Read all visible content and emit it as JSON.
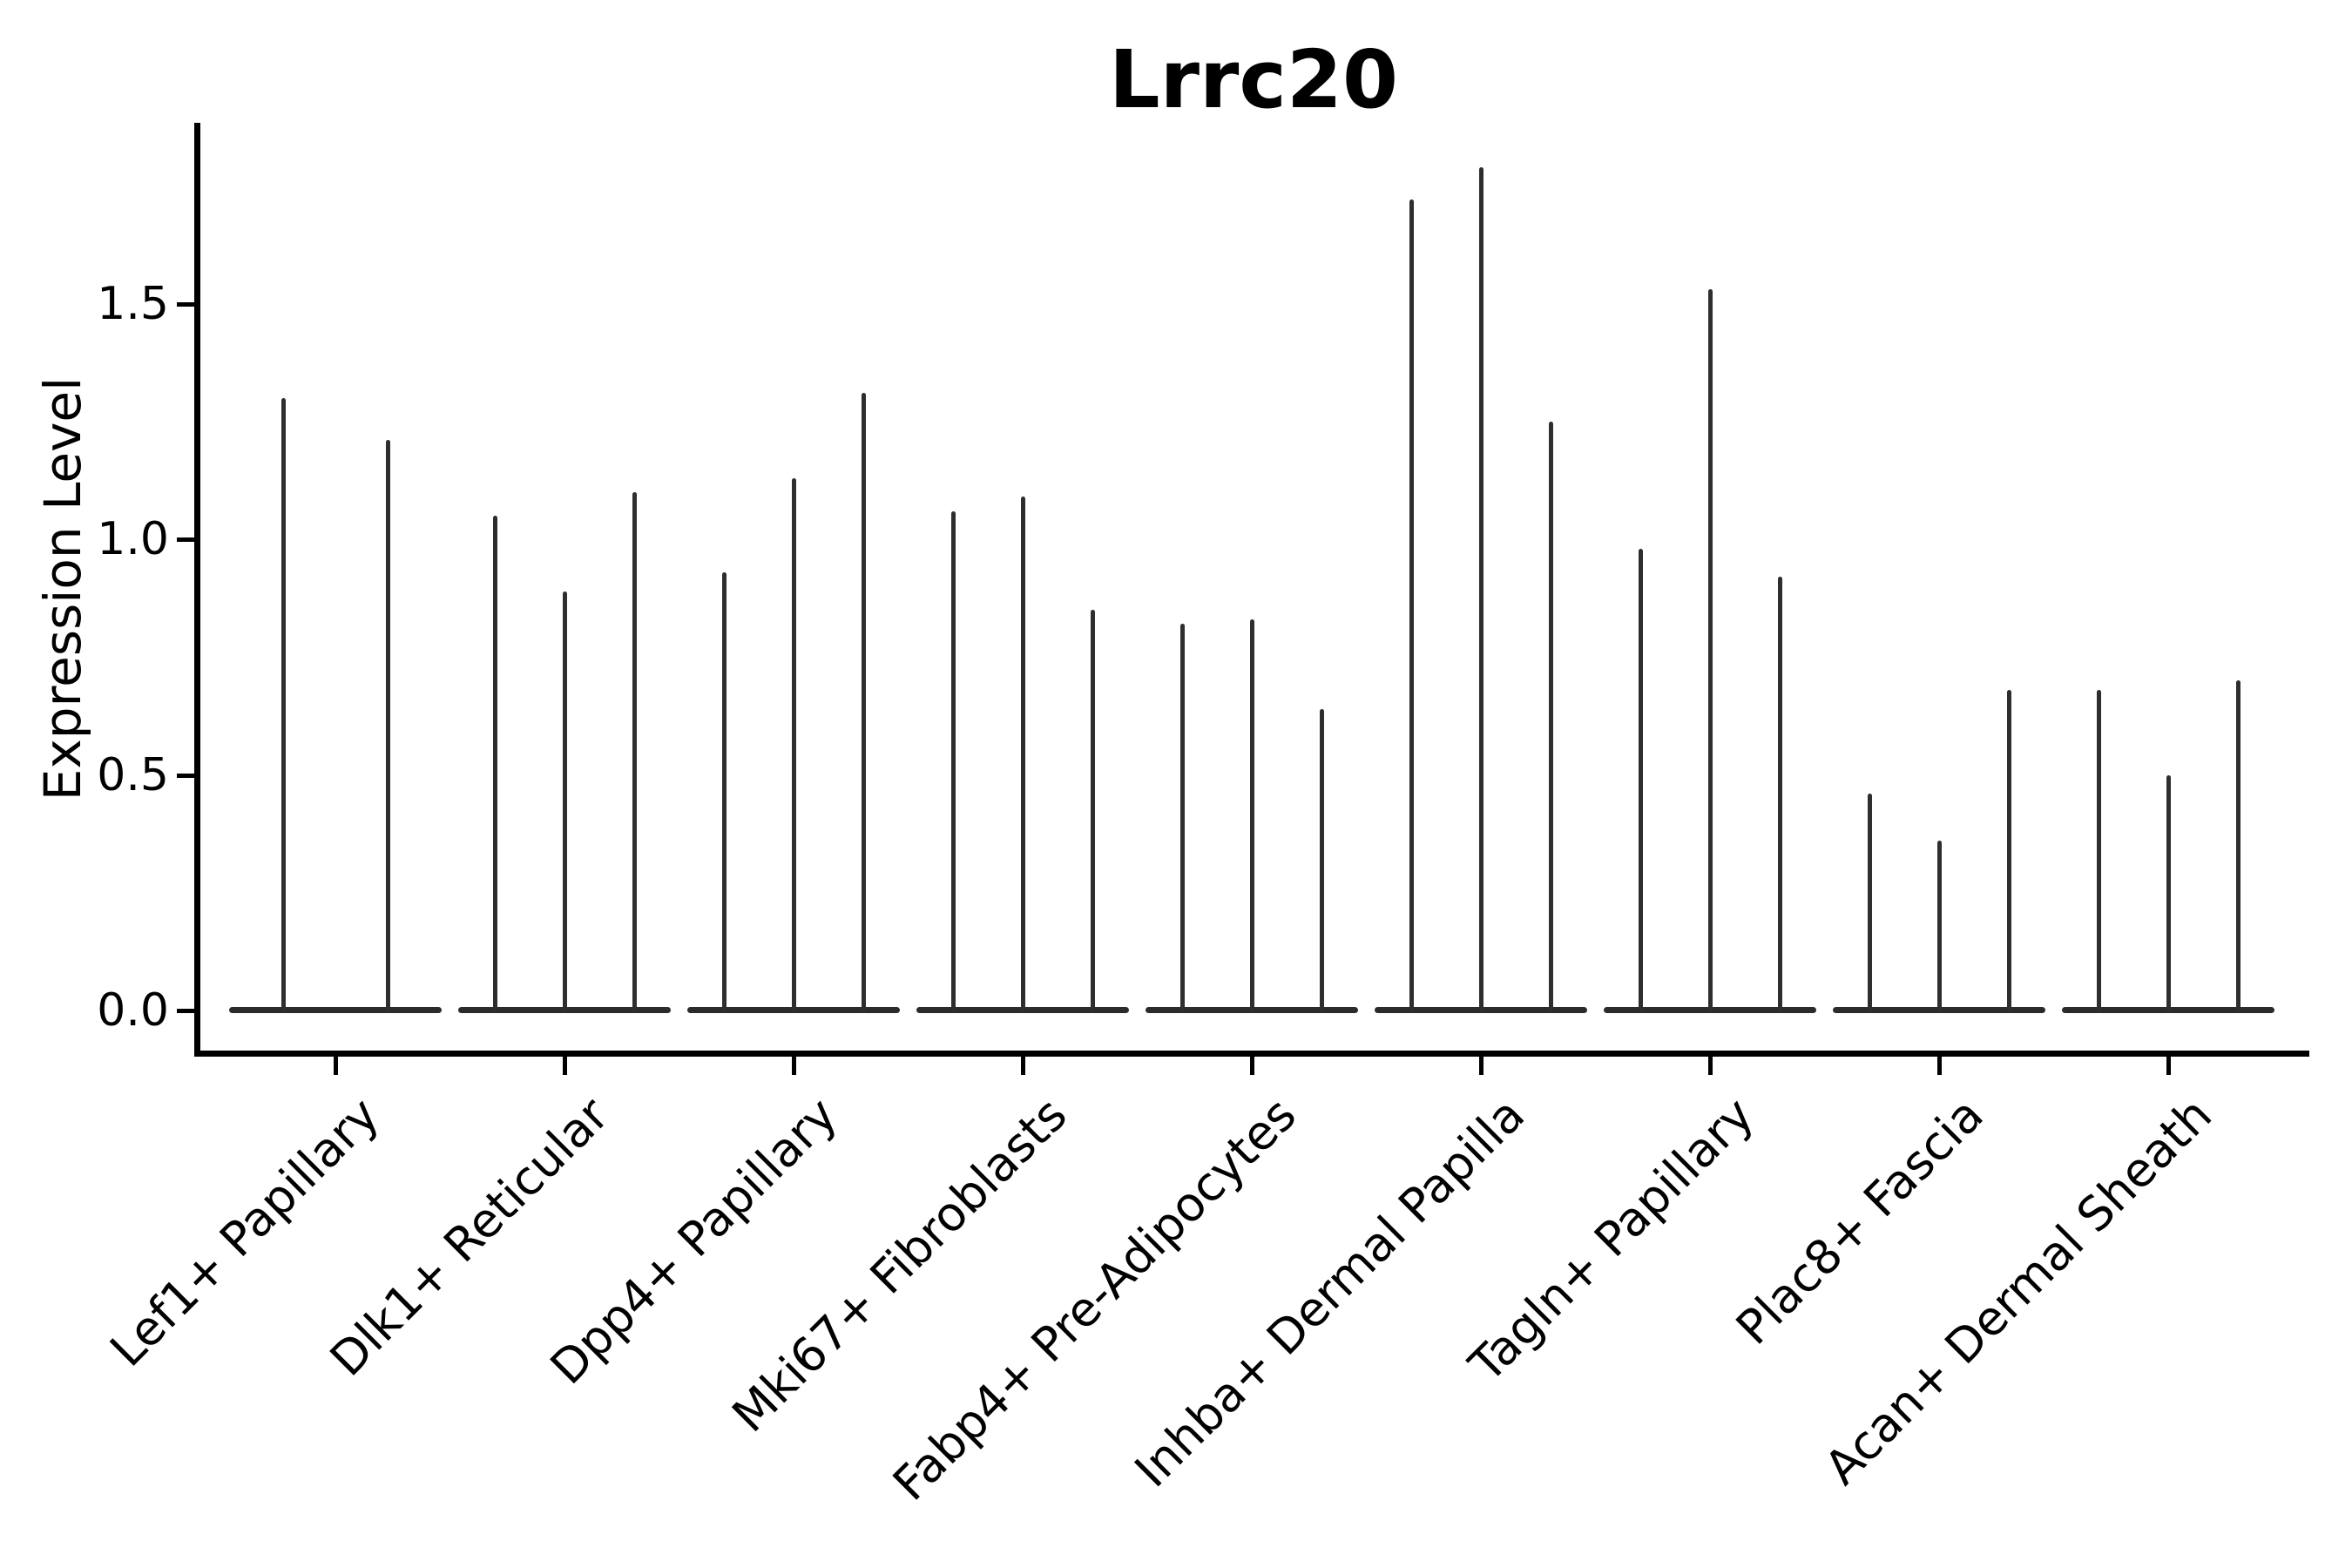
{
  "title": "Lrrc20",
  "y_axis": {
    "label": "Expression Level",
    "ticks": [
      "0.0",
      "0.5",
      "1.0",
      "1.5"
    ],
    "tick_values": [
      0.0,
      0.5,
      1.0,
      1.5
    ]
  },
  "colors": {
    "violin": "#2e2e2e",
    "violin_base": "#2b2b2b",
    "axis": "#000000",
    "text": "#000000",
    "background": "#ffffff"
  },
  "chart_data": {
    "type": "violin",
    "title": "Lrrc20",
    "xlabel": "",
    "ylabel": "Expression Level",
    "ylim": [
      -0.06,
      1.88
    ],
    "yticks": [
      0.0,
      0.5,
      1.0,
      1.5
    ],
    "grid": false,
    "legend": false,
    "note": "Thin spike-shaped violins: bulk of each distribution collapsed at 0 (flat base line), each spike top marks the maximum expression level of that violin.",
    "categories": [
      "Lef1+ Papillary",
      "Dlk1+ Reticular",
      "Dpp4+ Papillary",
      "Mki67+ Fibroblasts",
      "Fabp4+ Pre-Adipocytes",
      "Inhba+ Dermal Papilla",
      "Tagln+ Papillary",
      "Plac8+ Fascia",
      "Acan+ Dermal Sheath"
    ],
    "series": [
      {
        "category": "Lef1+ Papillary",
        "violin_peak_values": [
          1.3,
          1.21
        ]
      },
      {
        "category": "Dlk1+ Reticular",
        "violin_peak_values": [
          1.05,
          0.89,
          1.1
        ]
      },
      {
        "category": "Dpp4+ Papillary",
        "violin_peak_values": [
          0.93,
          1.13,
          1.31
        ]
      },
      {
        "category": "Mki67+ Fibroblasts",
        "violin_peak_values": [
          1.06,
          1.09,
          0.85
        ]
      },
      {
        "category": "Fabp4+ Pre-Adipocytes",
        "violin_peak_values": [
          0.82,
          0.83,
          0.64
        ]
      },
      {
        "category": "Inhba+ Dermal Papilla",
        "violin_peak_values": [
          1.72,
          1.79,
          1.25
        ]
      },
      {
        "category": "Tagln+ Papillary",
        "violin_peak_values": [
          0.98,
          1.53,
          0.92
        ]
      },
      {
        "category": "Plac8+ Fascia",
        "violin_peak_values": [
          0.46,
          0.36,
          0.68
        ]
      },
      {
        "category": "Acan+ Dermal Sheath",
        "violin_peak_values": [
          0.68,
          0.5,
          0.7
        ]
      }
    ]
  }
}
